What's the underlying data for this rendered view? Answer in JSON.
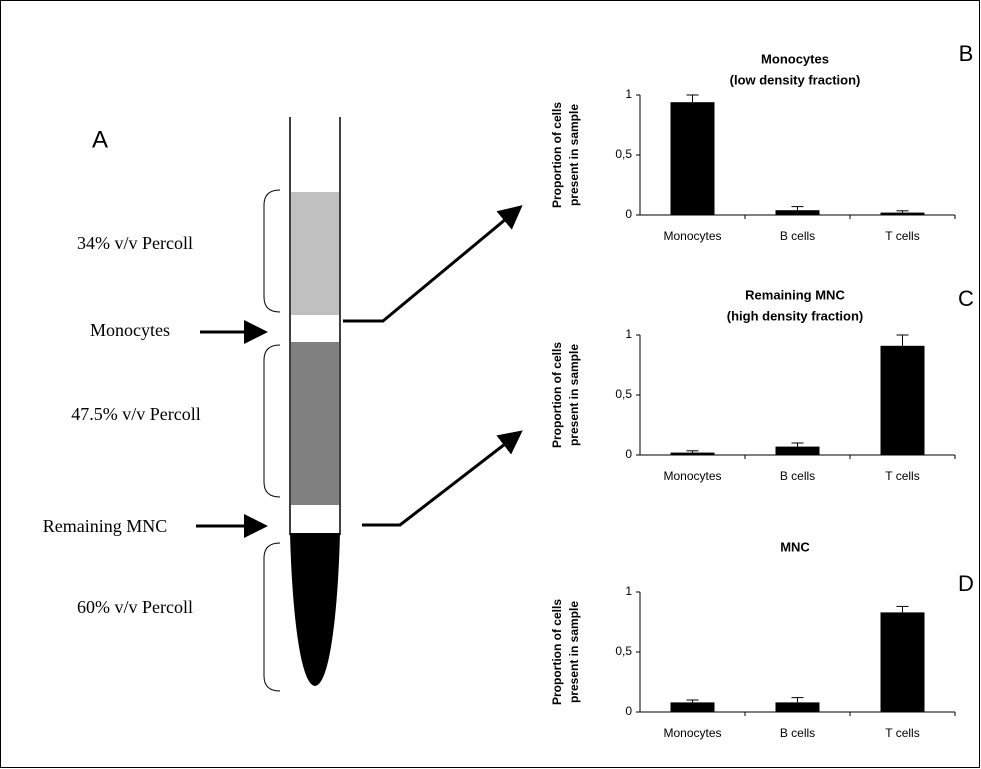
{
  "diagram": {
    "panel_label": "A",
    "layers": [
      "34% v/v Percoll",
      "47.5% v/v Percoll",
      "60% v/v Percoll"
    ],
    "fractions": [
      "Monocytes",
      "Remaining MNC"
    ]
  },
  "chart_data": [
    {
      "type": "bar",
      "panel_label": "B",
      "title": "Monocytes",
      "subtitle": "(low density fraction)",
      "ylabel": [
        "Proportion of cells",
        "present in sample"
      ],
      "categories": [
        "Monocytes",
        "B cells",
        "T cells"
      ],
      "values": [
        0.94,
        0.04,
        0.02
      ],
      "errors": [
        0.06,
        0.03,
        0.015
      ],
      "color": "#000000",
      "ylim": [
        0,
        1
      ],
      "yticks": [
        0,
        {
          "value": 0.5,
          "label": "0,5"
        },
        1
      ]
    },
    {
      "type": "bar",
      "panel_label": "C",
      "title": "Remaining MNC",
      "subtitle": "(high density fraction)",
      "ylabel": [
        "Proportion of cells",
        "present in sample"
      ],
      "categories": [
        "Monocytes",
        "B cells",
        "T cells"
      ],
      "values": [
        0.02,
        0.07,
        0.91
      ],
      "errors": [
        0.015,
        0.03,
        0.09
      ],
      "color": "#000000",
      "ylim": [
        0,
        1
      ],
      "yticks": [
        0,
        {
          "value": 0.5,
          "label": "0,5"
        },
        1
      ]
    },
    {
      "type": "bar",
      "panel_label": "D",
      "title": "MNC",
      "ylabel": [
        "Proportion of cells",
        "present in sample"
      ],
      "categories": [
        "Monocytes",
        "B cells",
        "T cells"
      ],
      "values": [
        0.08,
        0.08,
        0.83
      ],
      "errors": [
        0.02,
        0.04,
        0.05
      ],
      "color": "#000000",
      "ylim": [
        0,
        1
      ],
      "yticks": [
        0,
        {
          "value": 0.5,
          "label": "0,5"
        },
        1
      ]
    }
  ]
}
